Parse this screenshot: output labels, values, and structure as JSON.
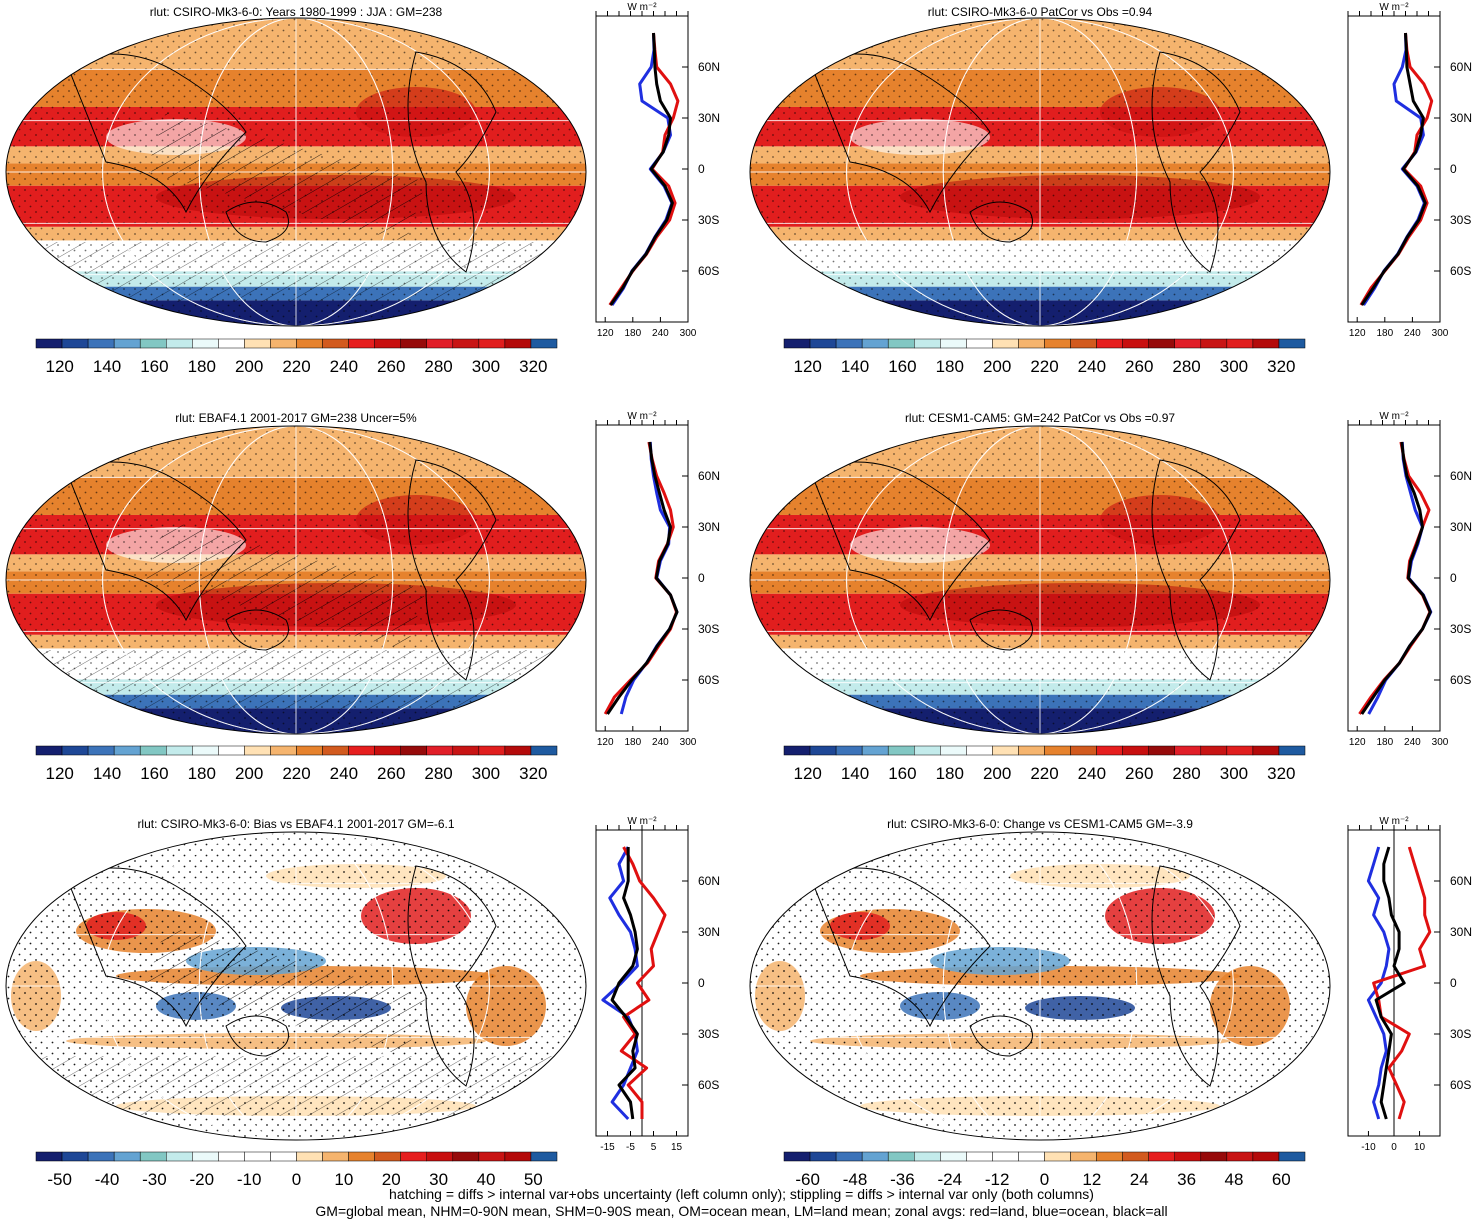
{
  "chart_data": [
    {
      "type": "heatmap",
      "title": "rlut: CSIRO-Mk3-6-0: Years 1980-1999 : JJA : GM=238",
      "colorbar": {
        "ticks": [
          "120",
          "140",
          "160",
          "180",
          "200",
          "220",
          "240",
          "260",
          "280",
          "300",
          "320"
        ],
        "colors": [
          "#141f6e",
          "#1e4796",
          "#3c73b9",
          "#64a3d2",
          "#82c7c3",
          "#c3ebeb",
          "#ebfafa",
          "#ffffff",
          "#ffe1b4",
          "#f5b46e",
          "#e6822d",
          "#d25a1e",
          "#e61e1e",
          "#c80f0f",
          "#960a0a",
          "#e11e28",
          "#c81414",
          "#e11e1e",
          "#b40a0a",
          "#1e5aa0"
        ]
      },
      "zonal": {
        "x_ticks": [
          "120",
          "180",
          "240",
          "300"
        ],
        "x_range": [
          100,
          300
        ],
        "y_ticks": [
          "60N",
          "30N",
          "0",
          "30S",
          "60S"
        ],
        "units": "W m⁻²",
        "lat": [
          80,
          70,
          60,
          50,
          40,
          30,
          20,
          10,
          0,
          -10,
          -20,
          -30,
          -40,
          -50,
          -60,
          -70,
          -80
        ],
        "land": [
          225,
          228,
          232,
          262,
          278,
          268,
          250,
          245,
          222,
          258,
          272,
          260,
          232,
          210,
          180,
          155,
          130
        ],
        "ocean": [
          225,
          226,
          220,
          195,
          200,
          256,
          262,
          246,
          218,
          248,
          265,
          252,
          228,
          208,
          178,
          160,
          135
        ],
        "all": [
          225,
          227,
          228,
          232,
          240,
          262,
          258,
          246,
          220,
          250,
          266,
          254,
          229,
          209,
          179,
          158,
          132
        ]
      }
    },
    {
      "type": "heatmap",
      "title": "rlut: CSIRO-Mk3-6-0 PatCor vs Obs =0.94",
      "colorbar": {
        "ticks": [
          "120",
          "140",
          "160",
          "180",
          "200",
          "220",
          "240",
          "260",
          "280",
          "300",
          "320"
        ]
      },
      "zonal": {
        "x_ticks": [
          "120",
          "180",
          "240",
          "300"
        ],
        "x_range": [
          100,
          300
        ],
        "y_ticks": [
          "60N",
          "30N",
          "0",
          "30S",
          "60S"
        ],
        "units": "W m⁻²",
        "lat": [
          80,
          70,
          60,
          50,
          40,
          30,
          20,
          10,
          0,
          -10,
          -20,
          -30,
          -40,
          -50,
          -60,
          -70,
          -80
        ],
        "land": [
          225,
          228,
          235,
          265,
          282,
          272,
          250,
          245,
          222,
          258,
          272,
          258,
          232,
          210,
          180,
          150,
          128
        ],
        "ocean": [
          225,
          226,
          218,
          200,
          205,
          258,
          264,
          248,
          218,
          250,
          266,
          252,
          228,
          208,
          178,
          158,
          134
        ],
        "all": [
          225,
          227,
          228,
          235,
          242,
          264,
          258,
          247,
          220,
          252,
          268,
          254,
          229,
          209,
          179,
          155,
          130
        ]
      }
    },
    {
      "type": "heatmap",
      "title": "rlut: EBAF4.1 2001-2017 GM=238 Uncer=5%",
      "colorbar": {
        "ticks": [
          "120",
          "140",
          "160",
          "180",
          "200",
          "220",
          "240",
          "260",
          "280",
          "300",
          "320"
        ]
      },
      "zonal": {
        "x_ticks": [
          "120",
          "180",
          "240",
          "300"
        ],
        "x_range": [
          100,
          300
        ],
        "y_ticks": [
          "60N",
          "30N",
          "0",
          "30S",
          "60S"
        ],
        "units": "W m⁻²",
        "lat": [
          80,
          70,
          60,
          50,
          40,
          30,
          20,
          10,
          0,
          -10,
          -20,
          -30,
          -40,
          -50,
          -60,
          -70,
          -80
        ],
        "land": [
          215,
          222,
          232,
          248,
          262,
          268,
          255,
          236,
          230,
          262,
          275,
          262,
          236,
          212,
          175,
          140,
          120
        ],
        "ocean": [
          218,
          220,
          225,
          232,
          240,
          260,
          258,
          240,
          232,
          262,
          276,
          260,
          232,
          210,
          182,
          165,
          155
        ],
        "all": [
          217,
          221,
          228,
          238,
          248,
          262,
          256,
          238,
          231,
          262,
          276,
          260,
          233,
          210,
          178,
          150,
          125
        ]
      }
    },
    {
      "type": "heatmap",
      "title": "rlut: CESM1-CAM5: GM=242 PatCor vs Obs =0.97",
      "colorbar": {
        "ticks": [
          "120",
          "140",
          "160",
          "180",
          "200",
          "220",
          "240",
          "260",
          "280",
          "300",
          "320"
        ]
      },
      "zonal": {
        "x_ticks": [
          "120",
          "180",
          "240",
          "300"
        ],
        "x_range": [
          100,
          300
        ],
        "y_ticks": [
          "60N",
          "30N",
          "0",
          "30S",
          "60S"
        ],
        "units": "W m⁻²",
        "lat": [
          80,
          70,
          60,
          50,
          40,
          30,
          20,
          10,
          0,
          -10,
          -20,
          -30,
          -40,
          -50,
          -60,
          -70,
          -80
        ],
        "land": [
          215,
          222,
          232,
          258,
          276,
          262,
          248,
          234,
          230,
          262,
          278,
          262,
          236,
          212,
          178,
          150,
          125
        ],
        "ocean": [
          218,
          220,
          226,
          236,
          246,
          262,
          252,
          238,
          232,
          264,
          280,
          262,
          234,
          212,
          182,
          165,
          145
        ],
        "all": [
          217,
          221,
          228,
          244,
          256,
          262,
          250,
          236,
          231,
          263,
          279,
          262,
          234,
          212,
          180,
          155,
          130
        ]
      }
    },
    {
      "type": "heatmap",
      "title": "rlut: CSIRO-Mk3-6-0: Bias vs EBAF4.1 2001-2017 GM=-6.1",
      "colorbar": {
        "ticks": [
          "-50",
          "-40",
          "-30",
          "-20",
          "-10",
          "0",
          "10",
          "20",
          "30",
          "40",
          "50"
        ]
      },
      "zonal": {
        "x_ticks": [
          "-15",
          "-5",
          "5",
          "15"
        ],
        "x_range": [
          -20,
          20
        ],
        "y_ticks": [
          "60N",
          "30N",
          "0",
          "30S",
          "60S"
        ],
        "units": "W m⁻²",
        "lat": [
          80,
          70,
          60,
          50,
          40,
          30,
          20,
          10,
          0,
          -10,
          -20,
          -30,
          -40,
          -50,
          -60,
          -70,
          -80
        ],
        "land": [
          -8,
          -4,
          -1,
          5,
          10,
          7,
          4,
          5,
          -2,
          3,
          -8,
          -3,
          -9,
          2,
          -6,
          0,
          0
        ],
        "ocean": [
          -6,
          -10,
          -8,
          -14,
          -10,
          -5,
          -3,
          -2,
          -9,
          -17,
          -6,
          -3,
          -2,
          -5,
          -8,
          -13,
          -6
        ],
        "all": [
          -6,
          -6,
          -6,
          -8,
          -5,
          -3,
          -2,
          -4,
          -10,
          -13,
          -7,
          -2,
          -4,
          -3,
          -10,
          -5,
          -4
        ]
      }
    },
    {
      "type": "heatmap",
      "title": "rlut: CSIRO-Mk3-6-0: Change vs CESM1-CAM5 GM=-3.9",
      "colorbar": {
        "ticks": [
          "-60",
          "-48",
          "-36",
          "-24",
          "-12",
          "0",
          "12",
          "24",
          "36",
          "48",
          "60"
        ]
      },
      "zonal": {
        "x_ticks": [
          "-10",
          "0",
          "10"
        ],
        "x_range": [
          -18,
          18
        ],
        "y_ticks": [
          "60N",
          "30N",
          "0",
          "30S",
          "60S"
        ],
        "units": "W m⁻²",
        "lat": [
          80,
          70,
          60,
          50,
          40,
          30,
          20,
          10,
          0,
          -10,
          -20,
          -30,
          -40,
          -50,
          -60,
          -70,
          -80
        ],
        "land": [
          6,
          8,
          10,
          12,
          12,
          14,
          10,
          12,
          -8,
          -6,
          -5,
          6,
          3,
          -2,
          1,
          4,
          2
        ],
        "ocean": [
          -6,
          -8,
          -10,
          -6,
          -8,
          -4,
          -2,
          -3,
          -5,
          -10,
          -7,
          -4,
          -3,
          -5,
          -6,
          -8,
          -6
        ],
        "all": [
          -2,
          -4,
          -4,
          -2,
          -1,
          2,
          2,
          0,
          4,
          -7,
          -5,
          -1,
          -2,
          -3,
          -4,
          -5,
          -3
        ]
      }
    }
  ],
  "footer": {
    "line1": "hatching = diffs > internal var+obs uncertainty (left column only); stippling = diffs > internal var only (both columns)",
    "line2": "GM=global mean, NHM=0-90N mean, SHM=0-90S mean, OM=ocean mean, LM=land mean; zonal avgs: red=land, blue=ocean, black=all"
  }
}
